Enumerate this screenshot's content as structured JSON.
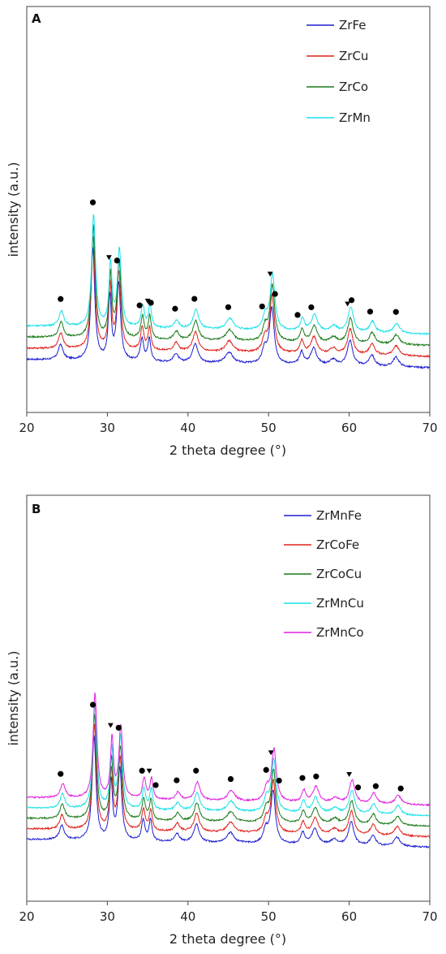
{
  "chart_data": [
    {
      "type": "line",
      "panel_label": "A",
      "xlabel": "2 theta degree (°)",
      "ylabel": "intensity (a.u.)",
      "xlim": [
        20,
        70
      ],
      "xticks": [
        20,
        30,
        40,
        50,
        60,
        70
      ],
      "yticks": [],
      "grid": false,
      "legend": "top-right",
      "markers": {
        "circle": [
          24.2,
          28.2,
          31.2,
          34.0,
          35.4,
          38.4,
          40.8,
          45.0,
          49.2,
          50.8,
          53.6,
          55.3,
          60.3,
          62.6,
          65.8
        ],
        "triangle": [
          30.2,
          35.0,
          50.2,
          59.8
        ]
      },
      "series": [
        {
          "name": "ZrFe",
          "color": "#1f1fd0",
          "offset": 0.0
        },
        {
          "name": "ZrCu",
          "color": "#e0201a",
          "offset": 0.08
        },
        {
          "name": "ZrCo",
          "color": "#1a7a1a",
          "offset": 0.16
        },
        {
          "name": "ZrMn",
          "color": "#1ae0e8",
          "offset": 0.24
        }
      ]
    },
    {
      "type": "line",
      "panel_label": "B",
      "xlabel": "2 theta degree (°)",
      "ylabel": "intensity (a.u.)",
      "xlim": [
        20,
        70
      ],
      "xticks": [
        20,
        30,
        40,
        50,
        60,
        70
      ],
      "yticks": [],
      "grid": false,
      "legend": "top-right",
      "markers": {
        "circle": [
          24.2,
          28.2,
          31.4,
          34.3,
          36.0,
          38.6,
          41.0,
          45.3,
          49.7,
          51.3,
          54.2,
          55.9,
          61.1,
          63.3,
          66.4
        ],
        "triangle": [
          30.4,
          35.2,
          50.3,
          60.0
        ]
      },
      "series": [
        {
          "name": "ZrMnFe",
          "color": "#1f1fd0",
          "offset": 0.0
        },
        {
          "name": "ZrCoFe",
          "color": "#e0201a",
          "offset": 0.08
        },
        {
          "name": "ZrCoCu",
          "color": "#1a7a1a",
          "offset": 0.16
        },
        {
          "name": "ZrMnCu",
          "color": "#1ae0e8",
          "offset": 0.24
        },
        {
          "name": "ZrMnCo",
          "color": "#e020e0",
          "offset": 0.32
        }
      ]
    }
  ]
}
